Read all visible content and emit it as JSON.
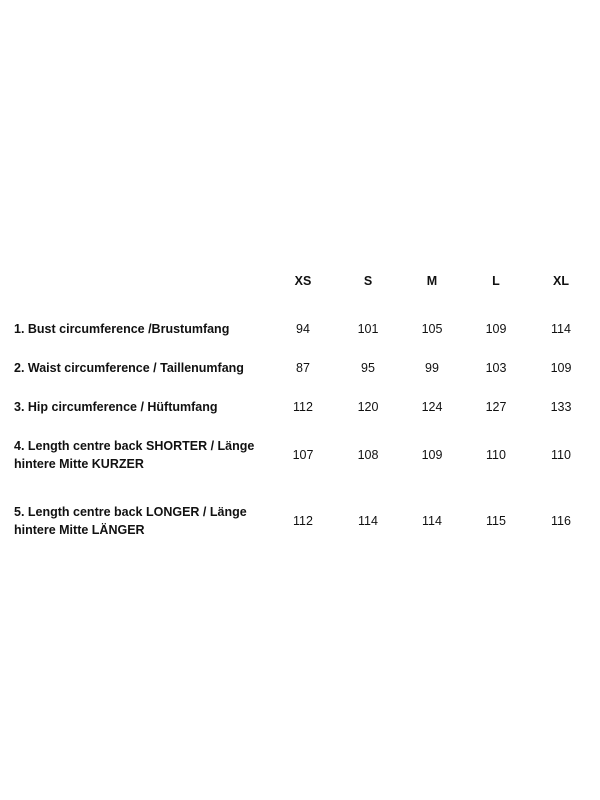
{
  "table": {
    "header": [
      "XS",
      "S",
      "M",
      "L",
      "XL"
    ],
    "rows": [
      {
        "label": [
          "1. Bust circumference /Brustumfang"
        ],
        "values": [
          94,
          101,
          105,
          109,
          114
        ]
      },
      {
        "label": [
          "2. Waist circumference / Taillenumfang"
        ],
        "values": [
          87,
          95,
          99,
          103,
          109
        ]
      },
      {
        "label": [
          "3. Hip circumference / Hüftumfang"
        ],
        "values": [
          112,
          120,
          124,
          127,
          133
        ]
      },
      {
        "label": [
          "4. Length centre back SHORTER / Länge",
          "hintere Mitte KURZER"
        ],
        "values": [
          107,
          108,
          109,
          110,
          110
        ]
      },
      {
        "label": [
          "5. Length centre back LONGER / Länge",
          "hintere Mitte LÄNGER"
        ],
        "values": [
          112,
          114,
          114,
          115,
          116
        ]
      }
    ]
  }
}
